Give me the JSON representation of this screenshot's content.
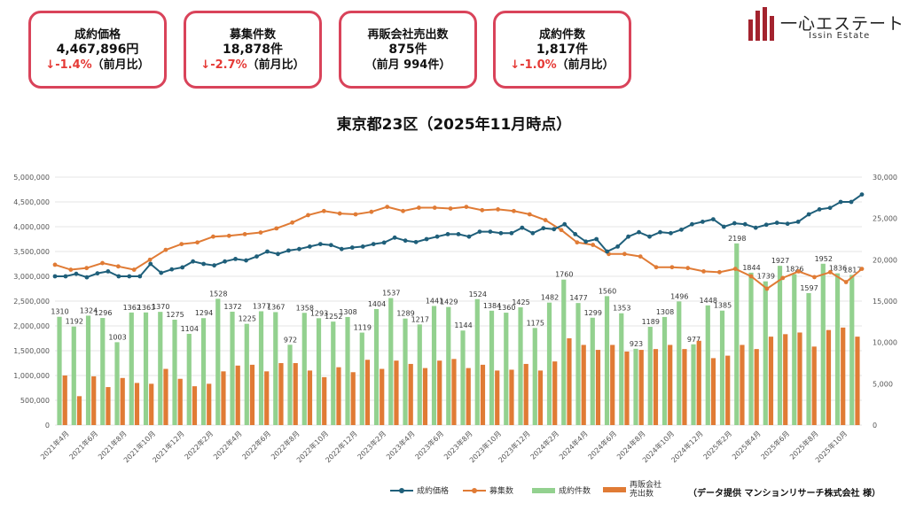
{
  "cards": [
    {
      "label": "成約価格",
      "value": "4,467,896円",
      "change_arrow": "↓",
      "change": "-1.4%",
      "change_suffix": "（前月比）"
    },
    {
      "label": "募集件数",
      "value": "18,878件",
      "change_arrow": "↓",
      "change": "-2.7%",
      "change_suffix": "（前月比）"
    },
    {
      "label": "再販会社売出数",
      "value": "875件",
      "sub": "（前月 994件）"
    },
    {
      "label": "成約件数",
      "value": "1,817件",
      "change_arrow": "↓",
      "change": "-1.0%",
      "change_suffix": "（前月比）"
    }
  ],
  "logo": {
    "name": "一心エステート",
    "sub": "Issin Estate"
  },
  "title": "東京都23区（2025年11月時点）",
  "credit": "（データ提供 マンションリサーチ株式会社 様）",
  "colors": {
    "price": "#1f5f7a",
    "listings": "#e07b35",
    "contracts": "#93d18f",
    "resale": "#e07b35",
    "card_border": "#d9435a",
    "negative": "#e53935"
  },
  "chart_data": {
    "type": "bar",
    "left_axis": {
      "min": 0,
      "max": 5000000,
      "ticks": [
        "0",
        "500,000",
        "1,000,000",
        "1,500,000",
        "2,000,000",
        "2,500,000",
        "3,000,000",
        "3,500,000",
        "4,000,000",
        "4,500,000",
        "5,000,000"
      ]
    },
    "right_axis": {
      "min": 0,
      "max": 30000,
      "ticks": [
        "0",
        "5,000",
        "10,000",
        "15,000",
        "20,000",
        "25,000",
        "30,000"
      ]
    },
    "x_labels": [
      "2021年4月",
      "2021年6月",
      "2021年8月",
      "2021年10月",
      "2021年12月",
      "2022年2月",
      "2022年4月",
      "2022年6月",
      "2022年8月",
      "2022年10月",
      "2022年12月",
      "2023年2月",
      "2023年4月",
      "2023年6月",
      "2023年8月",
      "2023年10月",
      "2023年12月",
      "2024年2月",
      "2024年4月",
      "2024年6月",
      "2024年8月",
      "2024年10月",
      "2024年12月",
      "2025年2月",
      "2025年4月",
      "2025年6月",
      "2025年8月",
      "2025年10月"
    ],
    "legend": [
      "成約価格",
      "募集数",
      "成約件数",
      "再販会社売出数"
    ],
    "series": [
      {
        "name": "成約価格",
        "axis": "left",
        "style": "line-marker",
        "values": [
          3000000,
          3000000,
          3050000,
          2980000,
          3060000,
          3100000,
          3000000,
          3000000,
          3000000,
          3250000,
          3070000,
          3140000,
          3180000,
          3300000,
          3250000,
          3220000,
          3300000,
          3350000,
          3320000,
          3400000,
          3500000,
          3450000,
          3520000,
          3550000,
          3600000,
          3650000,
          3630000,
          3550000,
          3580000,
          3600000,
          3650000,
          3680000,
          3780000,
          3720000,
          3690000,
          3750000,
          3800000,
          3850000,
          3850000,
          3800000,
          3900000,
          3900000,
          3870000,
          3870000,
          3980000,
          3870000,
          3970000,
          3950000,
          4050000,
          3850000,
          3700000,
          3750000,
          3500000,
          3600000,
          3800000,
          3890000,
          3800000,
          3890000,
          3870000,
          3940000,
          4050000,
          4100000,
          4150000,
          4000000,
          4070000,
          4050000,
          3980000,
          4040000,
          4080000,
          4060000,
          4100000,
          4250000,
          4350000,
          4380000,
          4500000,
          4500000,
          4650000
        ]
      },
      {
        "name": "募集数",
        "axis": "right",
        "style": "line-marker",
        "values": [
          19400,
          18800,
          19000,
          19600,
          19200,
          18800,
          20000,
          21200,
          21900,
          22100,
          22800,
          22900,
          23100,
          23300,
          23800,
          24500,
          25400,
          25900,
          25600,
          25500,
          25800,
          26400,
          25900,
          26300,
          26300,
          26200,
          26400,
          26000,
          26100,
          25900,
          25500,
          24800,
          23600,
          22100,
          21800,
          20700,
          20700,
          20400,
          19100,
          19100,
          19000,
          18600,
          18500,
          18900,
          18000,
          16500,
          17800,
          18600,
          17900,
          18500,
          17300,
          18900
        ]
      },
      {
        "name": "成約件数",
        "axis": "right",
        "style": "bar",
        "unit_scale": 10,
        "labels": true,
        "values": [
          1310,
          1192,
          1324,
          1296,
          1003,
          1362,
          1363,
          1370,
          1275,
          1104,
          1294,
          1528,
          1372,
          1225,
          1377,
          1367,
          972,
          1358,
          1293,
          1252,
          1308,
          1119,
          1404,
          1537,
          1289,
          1217,
          1441,
          1429,
          1144,
          1524,
          1384,
          1360,
          1425,
          1175,
          1482,
          1760,
          1477,
          1299,
          1560,
          1353,
          923,
          1189,
          1308,
          1496,
          977,
          1448,
          1385,
          2198,
          1844,
          1739,
          1927,
          1826,
          1597,
          1952,
          1836,
          1817
        ]
      },
      {
        "name": "再販会社売出数",
        "axis": "right",
        "style": "bar",
        "values": [
          6000,
          3500,
          5900,
          4600,
          5700,
          5100,
          5000,
          6800,
          5600,
          4700,
          5000,
          6500,
          7200,
          7300,
          6500,
          7500,
          7500,
          6600,
          5800,
          7000,
          6400,
          7900,
          6800,
          7800,
          7400,
          6900,
          7800,
          8000,
          6900,
          7300,
          6600,
          6700,
          7400,
          6600,
          7700,
          10500,
          9700,
          9100,
          9700,
          8900,
          9100,
          9200,
          9700,
          9200,
          10200,
          8100,
          8400,
          9700,
          9200,
          10700,
          11000,
          11200,
          9500,
          11500,
          11800,
          10700
        ]
      }
    ]
  }
}
